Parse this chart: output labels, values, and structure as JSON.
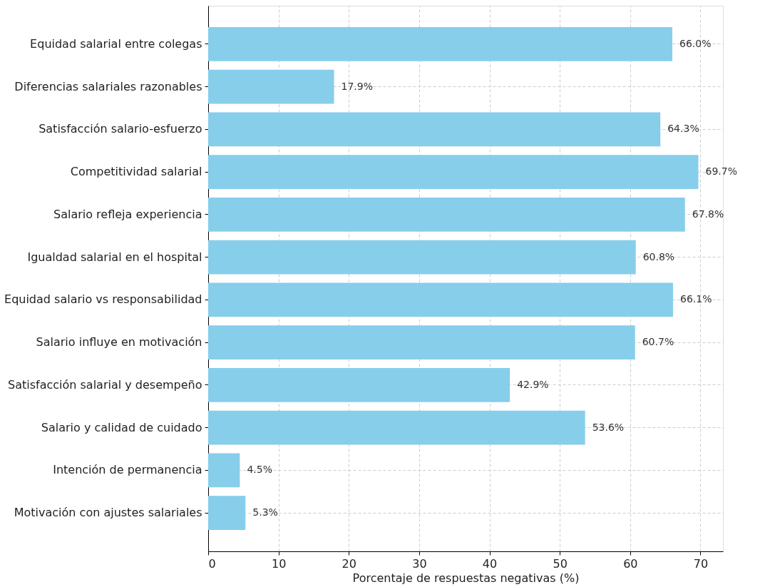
{
  "chart_data": {
    "type": "bar",
    "orientation": "horizontal",
    "xlabel": "Porcentaje de respuestas negativas (%)",
    "categories": [
      "Equidad salarial entre colegas",
      "Diferencias salariales razonables",
      "Satisfacción salario-esfuerzo",
      "Competitividad salarial",
      "Salario refleja experiencia",
      "Igualdad salarial en el hospital",
      "Equidad salario vs responsabilidad",
      "Salario influye en motivación",
      "Satisfacción salarial y desempeño",
      "Salario y calidad de cuidado",
      "Intención de permanencia",
      "Motivación con ajustes salariales"
    ],
    "values": [
      66.0,
      17.9,
      64.3,
      69.7,
      67.8,
      60.8,
      66.1,
      60.7,
      42.9,
      53.6,
      4.5,
      5.3
    ],
    "value_labels": [
      "66.0%",
      "17.9%",
      "64.3%",
      "69.7%",
      "67.8%",
      "60.8%",
      "66.1%",
      "60.7%",
      "42.9%",
      "53.6%",
      "4.5%",
      "5.3%"
    ],
    "color": "#87ceeb",
    "xlim": [
      0,
      73.2
    ],
    "xticks": [
      0,
      10,
      20,
      30,
      40,
      50,
      60,
      70
    ],
    "grid": true
  }
}
